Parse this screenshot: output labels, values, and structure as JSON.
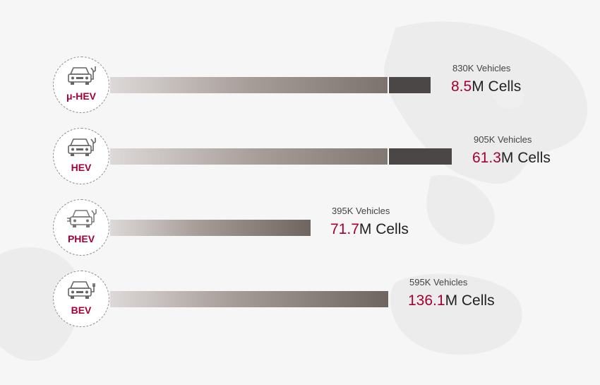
{
  "chart_data": {
    "type": "bar",
    "orientation": "horizontal",
    "categories": [
      "μ-HEV",
      "HEV",
      "PHEV",
      "BEV"
    ],
    "vehicles": [
      "830K Vehicles",
      "905K Vehicles",
      "395K Vehicles",
      "595K Vehicles"
    ],
    "vehicles_k": [
      830,
      905,
      395,
      595
    ],
    "cells_value": [
      "8.5",
      "61.3",
      "71.7",
      "136.1"
    ],
    "cells_unit": "M Cells",
    "icons": [
      "car-fuel-icon",
      "car-fuel-icon",
      "plug-in-car-fuel-icon",
      "electric-car-icon"
    ],
    "colors": {
      "accent": "#a50034",
      "bar_start": "#ddd9d8",
      "bar_end": "#6e6560",
      "segment": "#4c4747"
    }
  }
}
